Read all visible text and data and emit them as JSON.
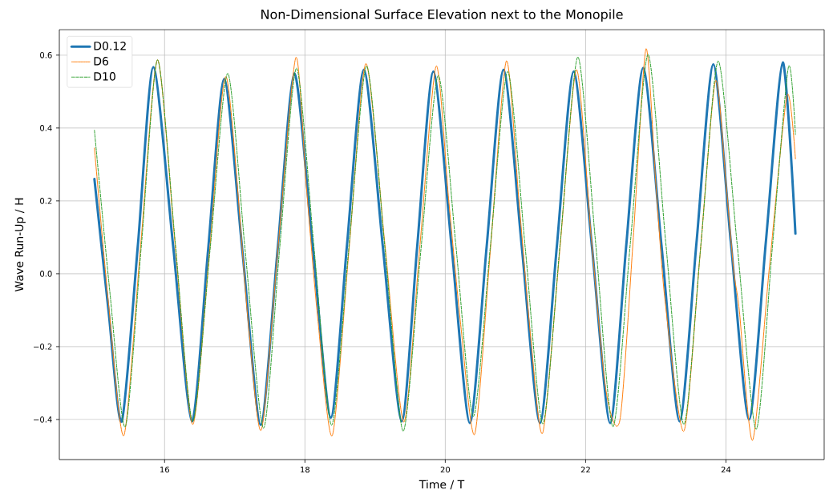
{
  "chart_data": {
    "type": "line",
    "title": "Non-Dimensional Surface Elevation next to the Monopile",
    "xlabel": "Time / T",
    "ylabel": "Wave Run-Up / H",
    "xlim": [
      14.5,
      25.4
    ],
    "ylim": [
      -0.51,
      0.67
    ],
    "xticks": [
      16,
      18,
      20,
      22,
      24
    ],
    "yticks": [
      {
        "value": -0.4,
        "label": "−0.4"
      },
      {
        "value": -0.2,
        "label": "−0.2"
      },
      {
        "value": 0,
        "label": "0.0"
      },
      {
        "value": 0.2,
        "label": "0.2"
      },
      {
        "value": 0.4,
        "label": "0.4"
      },
      {
        "value": 0.6,
        "label": "0.6"
      }
    ],
    "grid": true,
    "legend": "top left",
    "series": [
      {
        "name": "D0.12",
        "color": "#1f77b4",
        "line_style": "solid",
        "x": [
          15.0,
          15.2,
          15.39,
          15.62,
          15.84,
          16.12,
          16.39,
          16.62,
          16.85,
          17.11,
          17.37,
          17.61,
          17.85,
          18.11,
          18.37,
          18.6,
          18.84,
          19.11,
          19.38,
          19.6,
          19.83,
          20.09,
          20.35,
          20.59,
          20.83,
          21.09,
          21.35,
          21.59,
          21.83,
          22.09,
          22.35,
          22.58,
          22.82,
          23.08,
          23.34,
          23.58,
          23.82,
          24.07,
          24.33,
          24.57,
          24.81,
          24.99
        ],
        "values": [
          0.26,
          -0.1,
          -0.405,
          0.08,
          0.567,
          0.08,
          -0.405,
          0.065,
          0.535,
          0.06,
          -0.415,
          0.065,
          0.55,
          0.075,
          -0.395,
          0.08,
          0.56,
          0.075,
          -0.405,
          0.075,
          0.555,
          0.075,
          -0.41,
          0.075,
          0.56,
          0.075,
          -0.41,
          0.075,
          0.555,
          0.075,
          -0.41,
          0.08,
          0.565,
          0.08,
          -0.405,
          0.085,
          0.575,
          0.085,
          -0.4,
          0.09,
          0.58,
          0.11
        ]
      },
      {
        "name": "D6",
        "color": "#ff7f0e",
        "line_style": "solid",
        "x": [
          15.0,
          15.2,
          15.42,
          15.66,
          15.9,
          16.15,
          16.4,
          16.64,
          16.88,
          17.19,
          17.38,
          17.62,
          17.87,
          18.02,
          18.18,
          18.39,
          18.63,
          18.87,
          19.14,
          19.41,
          19.64,
          19.87,
          20.05,
          20.22,
          20.42,
          20.645,
          20.87,
          21.05,
          21.22,
          21.39,
          21.63,
          21.87,
          22.08,
          22.29,
          22.49,
          22.68,
          22.86,
          23.0,
          23.13,
          23.4,
          23.63,
          23.85,
          24.0,
          24.11,
          24.19,
          24.38,
          24.62,
          24.87,
          24.99
        ],
        "values": [
          0.345,
          -0.08,
          -0.444,
          0.08,
          0.587,
          0.08,
          -0.414,
          0.06,
          0.54,
          -0.13,
          -0.428,
          0.08,
          0.593,
          0.24,
          -0.117,
          -0.444,
          0.07,
          0.577,
          0.08,
          -0.407,
          0.08,
          0.57,
          0.2,
          -0.14,
          -0.44,
          0.07,
          0.584,
          0.2,
          -0.18,
          -0.436,
          0.06,
          0.56,
          0.1,
          -0.32,
          -0.4,
          0.1,
          0.617,
          0.25,
          -0.07,
          -0.432,
          0.05,
          0.529,
          0.25,
          0.01,
          -0.1,
          -0.457,
          0.02,
          0.489,
          0.315
        ]
      },
      {
        "name": "D10",
        "color": "#2ca02c",
        "line_style": "dashed",
        "x": [
          15.0,
          15.22,
          15.44,
          15.67,
          15.9,
          16.15,
          16.4,
          16.65,
          16.9,
          17.15,
          17.41,
          17.64,
          17.88,
          18.13,
          18.38,
          18.63,
          18.88,
          19.14,
          19.4,
          19.65,
          19.9,
          20.15,
          20.4,
          20.645,
          20.89,
          21.14,
          21.39,
          21.64,
          21.89,
          22.14,
          22.39,
          22.64,
          22.89,
          23.14,
          23.4,
          23.645,
          23.89,
          24.16,
          24.43,
          24.66,
          24.89,
          24.99
        ],
        "values": [
          0.394,
          -0.05,
          -0.42,
          0.08,
          0.587,
          0.09,
          -0.405,
          0.07,
          0.55,
          0.06,
          -0.424,
          0.07,
          0.564,
          0.07,
          -0.416,
          0.08,
          0.57,
          0.07,
          -0.432,
          0.06,
          0.544,
          0.08,
          -0.392,
          0.08,
          0.555,
          0.07,
          -0.412,
          0.09,
          0.595,
          0.09,
          -0.42,
          0.09,
          0.602,
          0.09,
          -0.414,
          0.085,
          0.584,
          0.08,
          -0.427,
          0.07,
          0.567,
          0.382
        ]
      }
    ]
  }
}
